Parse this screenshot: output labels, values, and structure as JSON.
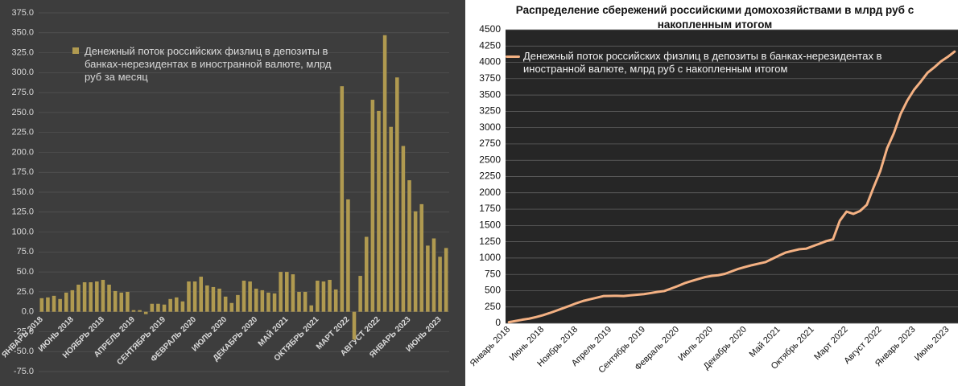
{
  "chart_data": [
    {
      "type": "bar",
      "categories": [
        "ЯНВАРЬ 2018",
        null,
        null,
        null,
        null,
        "ИЮНЬ 2018",
        null,
        null,
        null,
        null,
        "НОЯБРЬ 2018",
        null,
        null,
        null,
        null,
        "АПРЕЛЬ 2019",
        null,
        null,
        null,
        null,
        "СЕНТЯБРЬ 2019",
        null,
        null,
        null,
        null,
        "ФЕВРАЛЬ 2020",
        null,
        null,
        null,
        null,
        "ИЮЛЬ 2020",
        null,
        null,
        null,
        null,
        "ДЕКАБРЬ 2020",
        null,
        null,
        null,
        null,
        "МАЙ 2021",
        null,
        null,
        null,
        null,
        "ОКТЯБРЬ 2021",
        null,
        null,
        null,
        null,
        "МАРТ 2022",
        null,
        null,
        null,
        null,
        "АВГУСТ 2022",
        null,
        null,
        null,
        null,
        "ЯНВАРЬ 2023",
        null,
        null,
        null,
        null,
        "ИЮНЬ 2023",
        null
      ],
      "series": [
        {
          "name": "Денежный поток российских физлиц в депозиты в банках-нерезидентах в иностранной валюте, млрд руб за месяц",
          "color": "#b09a50",
          "values": [
            17,
            18,
            20,
            16,
            24,
            27,
            34,
            37,
            37,
            38,
            40,
            34,
            26,
            24,
            25,
            2,
            2,
            -3,
            10,
            10,
            9,
            16,
            18,
            13,
            38,
            38,
            44,
            33,
            31,
            29,
            19,
            11,
            21,
            39,
            38,
            29,
            27,
            24,
            23,
            50,
            50,
            47,
            25,
            25,
            8,
            39,
            38,
            40,
            28,
            283,
            141,
            -35,
            45,
            94,
            266,
            252,
            347,
            232,
            294,
            208,
            165,
            126,
            135,
            83,
            92,
            69,
            80
          ]
        }
      ],
      "ylim": [
        -75,
        375
      ],
      "yticks": [
        {
          "value": -75,
          "label": "-75.0"
        },
        {
          "value": -50,
          "label": "-50.0"
        },
        {
          "value": -25,
          "label": "-25.0"
        },
        {
          "value": 0,
          "label": "0.0"
        },
        {
          "value": 25,
          "label": "25.0"
        },
        {
          "value": 50,
          "label": "50.0"
        },
        {
          "value": 75,
          "label": "75.0"
        },
        {
          "value": 100,
          "label": "100.0"
        },
        {
          "value": 125,
          "label": "125.0"
        },
        {
          "value": 150,
          "label": "150.0"
        },
        {
          "value": 175,
          "label": "175.0"
        },
        {
          "value": 200,
          "label": "200.0"
        },
        {
          "value": 225,
          "label": "225.0"
        },
        {
          "value": 250,
          "label": "250.0"
        },
        {
          "value": 275,
          "label": "275.0"
        },
        {
          "value": 300,
          "label": "300.0"
        },
        {
          "value": 325,
          "label": "325.0"
        },
        {
          "value": 350,
          "label": "350.0"
        },
        {
          "value": 375,
          "label": "375.0"
        }
      ],
      "grid": true
    },
    {
      "type": "line",
      "title": "Распределение сбережений российскими домохозяйствами в млрд руб с накопленным итогом",
      "categories": [
        "Январь 2018",
        null,
        null,
        null,
        null,
        "Июнь 2018",
        null,
        null,
        null,
        null,
        "Ноябрь 2018",
        null,
        null,
        null,
        null,
        "Апрель 2019",
        null,
        null,
        null,
        null,
        "Сентябрь 2019",
        null,
        null,
        null,
        null,
        "Февраль 2020",
        null,
        null,
        null,
        null,
        "Июль 2020",
        null,
        null,
        null,
        null,
        "Декабрь 2020",
        null,
        null,
        null,
        null,
        "Май 2021",
        null,
        null,
        null,
        null,
        "Октябрь 2021",
        null,
        null,
        null,
        null,
        "Март 2022",
        null,
        null,
        null,
        null,
        "Август 2022",
        null,
        null,
        null,
        null,
        "Январь 2023",
        null,
        null,
        null,
        null,
        "Июнь 2023",
        null
      ],
      "series": [
        {
          "name": "Денежный поток российских физлиц в депозиты в банках-нерезидентах в иностранной валюте, млрд руб с накопленным итогом",
          "color": "#f4b183",
          "values": [
            17,
            35,
            55,
            71,
            95,
            122,
            156,
            193,
            230,
            268,
            308,
            342,
            368,
            392,
            417,
            419,
            421,
            418,
            428,
            438,
            447,
            463,
            481,
            494,
            532,
            570,
            614,
            647,
            678,
            707,
            726,
            737,
            758,
            797,
            835,
            864,
            891,
            915,
            938,
            988,
            1038,
            1085,
            1110,
            1135,
            1143,
            1182,
            1220,
            1260,
            1288,
            1571,
            1712,
            1677,
            1722,
            1816,
            2082,
            2334,
            2681,
            2913,
            3207,
            3415,
            3580,
            3706,
            3841,
            3924,
            4016,
            4085,
            4165
          ]
        }
      ],
      "ylim": [
        0,
        4500
      ],
      "yticks": [
        0,
        250,
        500,
        750,
        1000,
        1250,
        1500,
        1750,
        2000,
        2250,
        2500,
        2750,
        3000,
        3250,
        3500,
        3750,
        4000,
        4250,
        4500
      ],
      "grid": true
    }
  ]
}
